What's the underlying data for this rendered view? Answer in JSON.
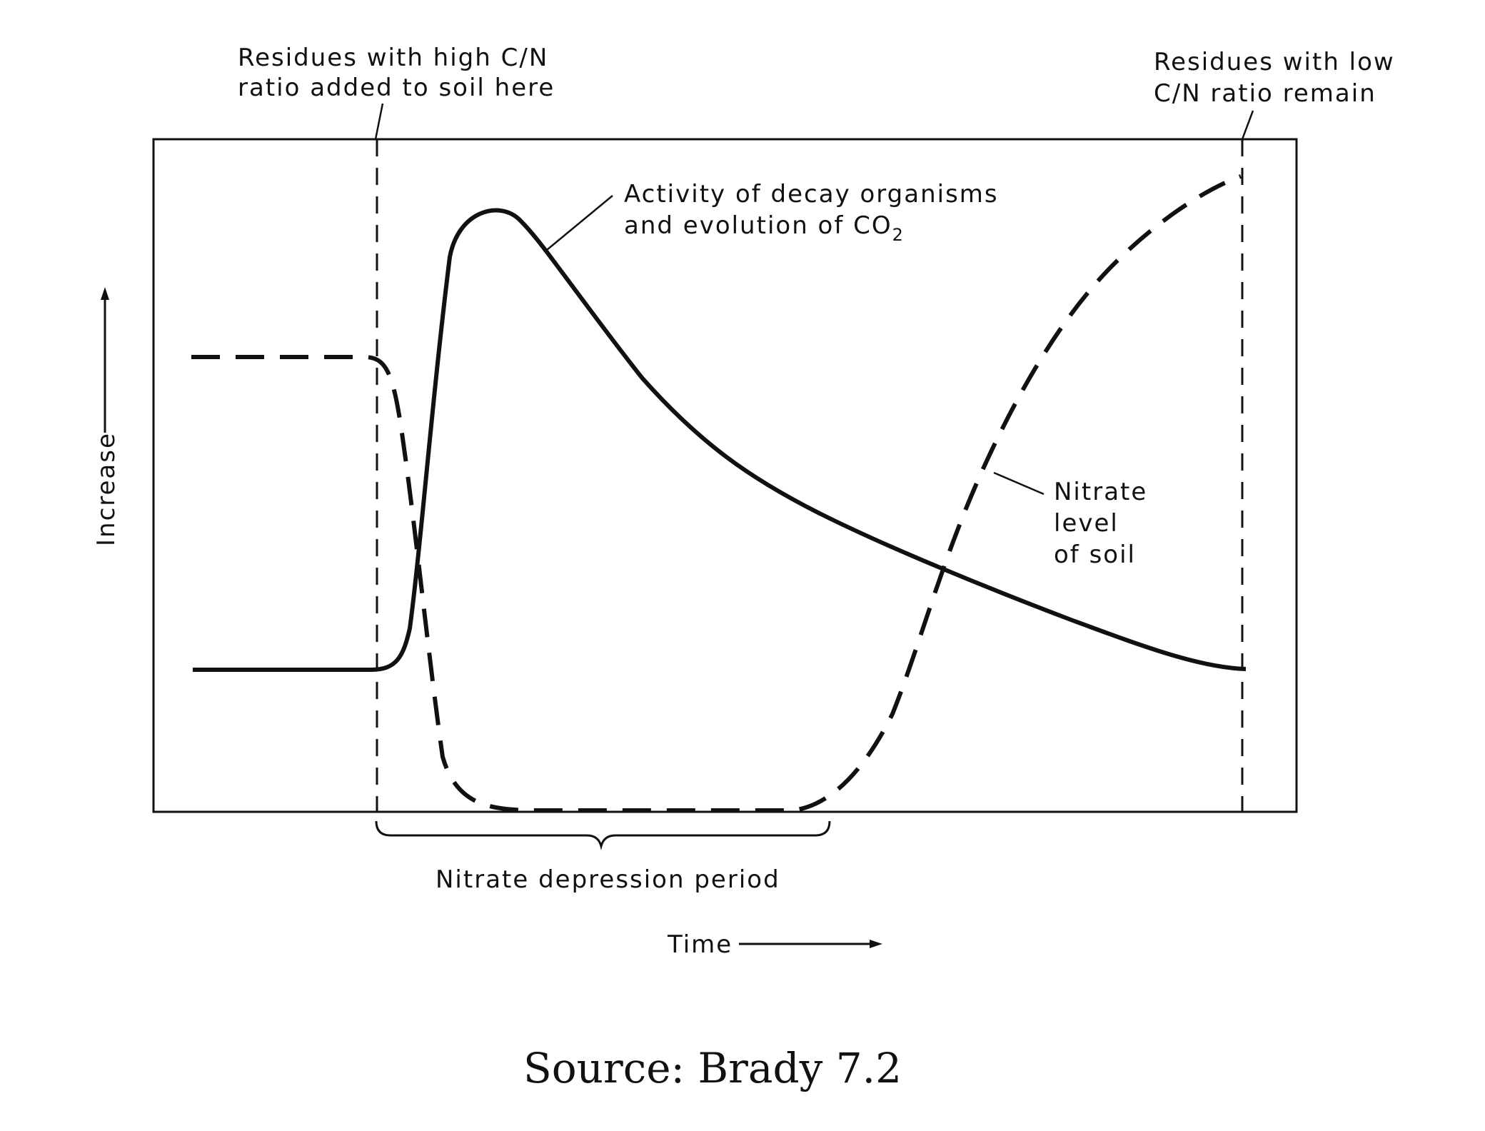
{
  "chart_data": {
    "type": "line",
    "ylabel": "Increase",
    "xlabel": "Time",
    "annotations": {
      "high_cn_line1": "Residues with high C/N",
      "high_cn_line2": "ratio added to soil here",
      "low_cn_line1": "Residues with low",
      "low_cn_line2": "C/N ratio remain",
      "decay_line1": "Activity of decay organisms",
      "decay_line2": "and evolution of CO",
      "decay_sub": "2",
      "nitrate_line1": "Nitrate",
      "nitrate_line2": "level",
      "nitrate_line3": "of soil",
      "depression": "Nitrate depression period"
    },
    "series": [
      {
        "name": "Activity of decay organisms and evolution of CO2",
        "style": "solid"
      },
      {
        "name": "Nitrate level of soil",
        "style": "dashed"
      }
    ]
  },
  "caption": "Source:  Brady 7.2"
}
